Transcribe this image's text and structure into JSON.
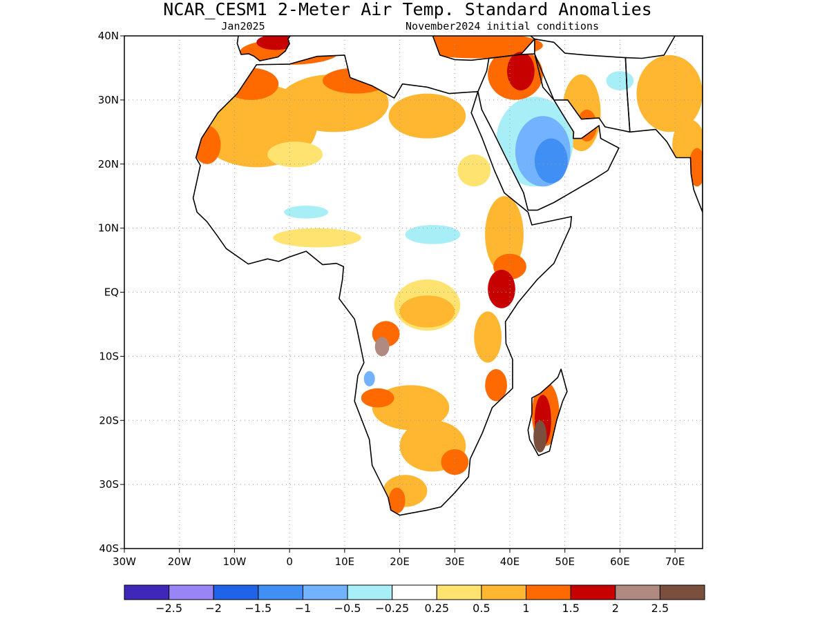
{
  "header": {
    "title": "NCAR_CESM1 2-Meter Air Temp. Standard Anomalies",
    "valid_month": "Jan2025",
    "init_label": "November2024 initial conditions"
  },
  "map": {
    "lon_range": [
      -30,
      75
    ],
    "lat_range": [
      -40,
      40
    ],
    "lon_ticks": [
      {
        "value": -30,
        "label": "30W"
      },
      {
        "value": -20,
        "label": "20W"
      },
      {
        "value": -10,
        "label": "10W"
      },
      {
        "value": 0,
        "label": "0"
      },
      {
        "value": 10,
        "label": "10E"
      },
      {
        "value": 20,
        "label": "20E"
      },
      {
        "value": 30,
        "label": "30E"
      },
      {
        "value": 40,
        "label": "40E"
      },
      {
        "value": 50,
        "label": "50E"
      },
      {
        "value": 60,
        "label": "60E"
      },
      {
        "value": 70,
        "label": "70E"
      }
    ],
    "lat_ticks": [
      {
        "value": 40,
        "label": "40N"
      },
      {
        "value": 30,
        "label": "30N"
      },
      {
        "value": 20,
        "label": "20N"
      },
      {
        "value": 10,
        "label": "10N"
      },
      {
        "value": 0,
        "label": "EQ"
      },
      {
        "value": -10,
        "label": "10S"
      },
      {
        "value": -20,
        "label": "20S"
      },
      {
        "value": -30,
        "label": "30S"
      },
      {
        "value": -40,
        "label": "40S"
      }
    ],
    "gridlines": true,
    "africa_outline": [
      [
        -17,
        21
      ],
      [
        -16,
        24
      ],
      [
        -13,
        28
      ],
      [
        -9.5,
        31
      ],
      [
        -6,
        35.5
      ],
      [
        0,
        35.6
      ],
      [
        5,
        36.8
      ],
      [
        10,
        37
      ],
      [
        11,
        33.5
      ],
      [
        15,
        32.2
      ],
      [
        19,
        30.3
      ],
      [
        20.5,
        32.5
      ],
      [
        25,
        32
      ],
      [
        29,
        31
      ],
      [
        32.3,
        31.2
      ],
      [
        34.2,
        31.3
      ],
      [
        33,
        28
      ],
      [
        35,
        24
      ],
      [
        37.2,
        19
      ],
      [
        39,
        15.5
      ],
      [
        43.3,
        12.5
      ],
      [
        44,
        10.5
      ],
      [
        51.2,
        11.8
      ],
      [
        51,
        10.2
      ],
      [
        48,
        4.5
      ],
      [
        45,
        2
      ],
      [
        41.5,
        -1.6
      ],
      [
        39.2,
        -4.6
      ],
      [
        39.3,
        -8
      ],
      [
        40.5,
        -10.5
      ],
      [
        40.5,
        -15
      ],
      [
        36.8,
        -18
      ],
      [
        35,
        -22
      ],
      [
        32.8,
        -26
      ],
      [
        32.5,
        -28.8
      ],
      [
        30,
        -31.3
      ],
      [
        27.5,
        -33.5
      ],
      [
        25,
        -34
      ],
      [
        20,
        -34.8
      ],
      [
        18.4,
        -34
      ],
      [
        17.9,
        -32
      ],
      [
        15,
        -27
      ],
      [
        14.5,
        -23
      ],
      [
        11.8,
        -17
      ],
      [
        12.4,
        -13
      ],
      [
        13.5,
        -11
      ],
      [
        12.3,
        -6
      ],
      [
        11.8,
        -4.2
      ],
      [
        9,
        -1
      ],
      [
        9.6,
        2
      ],
      [
        9.8,
        4
      ],
      [
        8.5,
        4.5
      ],
      [
        6,
        4.3
      ],
      [
        3,
        6.4
      ],
      [
        0,
        5.5
      ],
      [
        -2,
        4.8
      ],
      [
        -4,
        5.2
      ],
      [
        -7.5,
        4.4
      ],
      [
        -11.5,
        6.8
      ],
      [
        -13.2,
        8.9
      ],
      [
        -15,
        11
      ],
      [
        -16.8,
        12.5
      ],
      [
        -17.5,
        14.7
      ],
      [
        -16.2,
        19.8
      ],
      [
        -17,
        21
      ]
    ],
    "arabia_outline": [
      [
        34.2,
        31.3
      ],
      [
        35.8,
        34.5
      ],
      [
        36.2,
        36.5
      ],
      [
        42,
        37.1
      ],
      [
        44.5,
        37.2
      ],
      [
        48,
        30
      ],
      [
        50.5,
        26.5
      ],
      [
        51.6,
        25
      ],
      [
        51.5,
        24
      ],
      [
        53,
        24
      ],
      [
        56.2,
        26
      ],
      [
        56.5,
        24
      ],
      [
        59.8,
        22.5
      ],
      [
        57.8,
        19
      ],
      [
        55,
        17.5
      ],
      [
        52,
        16
      ],
      [
        48,
        14
      ],
      [
        45,
        12.8
      ],
      [
        43.3,
        12.8
      ],
      [
        42.5,
        15.5
      ],
      [
        39,
        21.5
      ],
      [
        37,
        25
      ],
      [
        34.9,
        28.5
      ],
      [
        34.2,
        31.3
      ]
    ],
    "madagascar_outline": [
      [
        49.3,
        -12
      ],
      [
        50.4,
        -15.5
      ],
      [
        49.6,
        -17
      ],
      [
        48.5,
        -20
      ],
      [
        47.2,
        -24.8
      ],
      [
        45.2,
        -25.5
      ],
      [
        43.6,
        -23
      ],
      [
        43.3,
        -21.5
      ],
      [
        44,
        -19
      ],
      [
        44,
        -16.5
      ],
      [
        45.5,
        -15.8
      ],
      [
        47.2,
        -14.5
      ],
      [
        48.7,
        -13.3
      ],
      [
        49.3,
        -12
      ]
    ],
    "europe_outline": [
      [
        -9.5,
        38.8
      ],
      [
        -9.3,
        40
      ],
      [
        -8.8,
        42
      ],
      [
        -6,
        43.5
      ],
      [
        -1.5,
        43.5
      ],
      [
        3.2,
        42.2
      ],
      [
        3.1,
        41.5
      ],
      [
        0.8,
        40.8
      ],
      [
        -0.3,
        39.5
      ],
      [
        0,
        38.8
      ],
      [
        -0.8,
        37.6
      ],
      [
        -2.1,
        36.7
      ],
      [
        -5.4,
        36.1
      ],
      [
        -6.4,
        36.8
      ],
      [
        -7.4,
        37.2
      ],
      [
        -8.8,
        37.1
      ],
      [
        -9.5,
        38.8
      ]
    ],
    "turkey_outline": [
      [
        26,
        40
      ],
      [
        30,
        41.1
      ],
      [
        35,
        42
      ],
      [
        41.5,
        41.5
      ],
      [
        44.5,
        39.5
      ],
      [
        42,
        37.1
      ],
      [
        36.2,
        36.5
      ],
      [
        33,
        36.2
      ],
      [
        30,
        36.3
      ],
      [
        27.3,
        37
      ],
      [
        26,
        40
      ]
    ],
    "iran_outline": [
      [
        44.5,
        39.5
      ],
      [
        48,
        39
      ],
      [
        50,
        37.3
      ],
      [
        54,
        37
      ],
      [
        61,
        36.6
      ],
      [
        61.3,
        31.2
      ],
      [
        61.8,
        25
      ],
      [
        57.3,
        25.8
      ],
      [
        56.2,
        27.2
      ],
      [
        53,
        27
      ],
      [
        50.5,
        30
      ],
      [
        48,
        30
      ],
      [
        46,
        32
      ],
      [
        44.5,
        37.2
      ],
      [
        44.5,
        39.5
      ]
    ],
    "india_outline": [
      [
        61.8,
        25
      ],
      [
        66.5,
        25.4
      ],
      [
        68.5,
        23.5
      ],
      [
        70.2,
        21
      ],
      [
        72.8,
        21
      ],
      [
        72.9,
        18.5
      ],
      [
        73.4,
        16
      ],
      [
        74.3,
        14
      ],
      [
        75,
        12.5
      ],
      [
        75,
        40
      ],
      [
        70,
        40
      ],
      [
        68,
        37
      ],
      [
        64,
        36.5
      ],
      [
        61,
        36.6
      ],
      [
        61.3,
        31.2
      ],
      [
        61.8,
        25
      ]
    ],
    "anomaly_patches": [
      {
        "category": "0.5",
        "color": "#FFB732",
        "lon": -6,
        "lat": 26,
        "rx": 11,
        "ry": 6.5
      },
      {
        "category": "0.5",
        "color": "#FFB732",
        "lon": 8,
        "lat": 29.5,
        "rx": 10,
        "ry": 4.5
      },
      {
        "category": "0.5",
        "color": "#FFB732",
        "lon": 25,
        "lat": 27.5,
        "rx": 7,
        "ry": 3.5
      },
      {
        "category": "1",
        "color": "#FF6A00",
        "lon": -7,
        "lat": 32.5,
        "rx": 5,
        "ry": 2.5
      },
      {
        "category": "1",
        "color": "#FF6A00",
        "lon": 12,
        "lat": 33,
        "rx": 6,
        "ry": 2
      },
      {
        "category": "0.25",
        "color": "#FFE370",
        "lon": 1,
        "lat": 21.5,
        "rx": 5,
        "ry": 2
      },
      {
        "category": "1",
        "color": "#FF6A00",
        "lon": -15,
        "lat": 23,
        "rx": 2.5,
        "ry": 3
      },
      {
        "category": "1",
        "color": "#FF6A00",
        "lon": 0,
        "lat": 37.5,
        "rx": 9,
        "ry": 2
      },
      {
        "category": "1.5",
        "color": "#C70000",
        "lon": -2.5,
        "lat": 39,
        "rx": 3.5,
        "ry": 1.2
      },
      {
        "category": "1",
        "color": "#FF6A00",
        "lon": 34,
        "lat": 38.5,
        "rx": 12,
        "ry": 2
      },
      {
        "category": "1",
        "color": "#FF6A00",
        "lon": 41,
        "lat": 34,
        "rx": 5,
        "ry": 4
      },
      {
        "category": "1.5",
        "color": "#C70000",
        "lon": 42,
        "lat": 34.5,
        "rx": 2.5,
        "ry": 3
      },
      {
        "category": "0.5",
        "color": "#FFB732",
        "lon": 53,
        "lat": 28,
        "rx": 3.5,
        "ry": 6
      },
      {
        "category": "1",
        "color": "#FF6A00",
        "lon": 54,
        "lat": 26,
        "rx": 1.8,
        "ry": 2.5
      },
      {
        "category": "0.5",
        "color": "#FFB732",
        "lon": 69,
        "lat": 31,
        "rx": 6,
        "ry": 6
      },
      {
        "category": "0.5",
        "color": "#FFB732",
        "lon": 72.5,
        "lat": 23,
        "rx": 3,
        "ry": 4
      },
      {
        "category": "1",
        "color": "#FF6A00",
        "lon": 74,
        "lat": 19.5,
        "rx": 1.5,
        "ry": 3
      },
      {
        "category": "0.25",
        "color": "#FFE370",
        "lon": 33.5,
        "lat": 19,
        "rx": 3,
        "ry": 2.5
      },
      {
        "category": "0.25",
        "color": "#FFE370",
        "lon": 5,
        "lat": 8.5,
        "rx": 8,
        "ry": 1.5
      },
      {
        "category": "-0.5",
        "color": "#A8EEF7",
        "lon": 3,
        "lat": 12.5,
        "rx": 4,
        "ry": 1
      },
      {
        "category": "-0.5",
        "color": "#A8EEF7",
        "lon": 26,
        "lat": 9,
        "rx": 5,
        "ry": 1.5
      },
      {
        "category": "-0.5",
        "color": "#A8EEF7",
        "lon": 60,
        "lat": 33,
        "rx": 2.5,
        "ry": 1.5
      },
      {
        "category": "-0.25",
        "color": "#A8EEF7",
        "lon": 44.5,
        "lat": 23.5,
        "rx": 7,
        "ry": 7
      },
      {
        "category": "-1",
        "color": "#73B2FF",
        "lon": 46,
        "lat": 22,
        "rx": 5,
        "ry": 5.5
      },
      {
        "category": "-1.5",
        "color": "#3F8FF5",
        "lon": 47.5,
        "lat": 20.5,
        "rx": 3,
        "ry": 3.5
      },
      {
        "category": "0.5",
        "color": "#FFB732",
        "lon": 39,
        "lat": 9,
        "rx": 3.5,
        "ry": 6
      },
      {
        "category": "1",
        "color": "#FF6A00",
        "lon": 40,
        "lat": 4,
        "rx": 3,
        "ry": 2
      },
      {
        "category": "1.5",
        "color": "#C70000",
        "lon": 38.5,
        "lat": 0.5,
        "rx": 2.5,
        "ry": 3
      },
      {
        "category": "0.25",
        "color": "#FFE370",
        "lon": 25,
        "lat": -2,
        "rx": 6,
        "ry": 4
      },
      {
        "category": "0.5",
        "color": "#FFB732",
        "lon": 25,
        "lat": -3,
        "rx": 5,
        "ry": 2.5
      },
      {
        "category": "1",
        "color": "#FF6A00",
        "lon": 17.5,
        "lat": -6.5,
        "rx": 2.5,
        "ry": 2
      },
      {
        "category": "2",
        "color": "#B08A80",
        "lon": 16.8,
        "lat": -8.5,
        "rx": 1.3,
        "ry": 1.5
      },
      {
        "category": "0.5",
        "color": "#FFB732",
        "lon": 36,
        "lat": -7,
        "rx": 2.5,
        "ry": 4
      },
      {
        "category": "1",
        "color": "#FF6A00",
        "lon": 37.5,
        "lat": -14.5,
        "rx": 2,
        "ry": 2.5
      },
      {
        "category": "-1",
        "color": "#73B2FF",
        "lon": 14.5,
        "lat": -13.5,
        "rx": 1,
        "ry": 1.2
      },
      {
        "category": "0.5",
        "color": "#FFB732",
        "lon": 22,
        "lat": -18,
        "rx": 7,
        "ry": 3.5
      },
      {
        "category": "0.5",
        "color": "#FFB732",
        "lon": 26,
        "lat": -24,
        "rx": 6,
        "ry": 4
      },
      {
        "category": "1",
        "color": "#FF6A00",
        "lon": 16,
        "lat": -16.5,
        "rx": 3,
        "ry": 1.5
      },
      {
        "category": "1",
        "color": "#FF6A00",
        "lon": 30,
        "lat": -26.5,
        "rx": 2.5,
        "ry": 2
      },
      {
        "category": "0.5",
        "color": "#FFB732",
        "lon": 21,
        "lat": -31,
        "rx": 4,
        "ry": 2.5
      },
      {
        "category": "1",
        "color": "#FF6A00",
        "lon": 19.5,
        "lat": -32.5,
        "rx": 1.5,
        "ry": 2
      },
      {
        "category": "1",
        "color": "#FF6A00",
        "lon": 46.5,
        "lat": -19,
        "rx": 2.5,
        "ry": 5
      },
      {
        "category": "1.5",
        "color": "#C70000",
        "lon": 46,
        "lat": -20,
        "rx": 1.5,
        "ry": 4
      },
      {
        "category": "2.5",
        "color": "#7A4F3E",
        "lon": 45.5,
        "lat": -22.5,
        "rx": 1.2,
        "ry": 2.5
      }
    ]
  },
  "colorbar": {
    "colors": [
      "#3F28B8",
      "#9A85F7",
      "#1F64E8",
      "#3F8FF5",
      "#73B2FF",
      "#A8EEF7",
      "#FFFFFF",
      "#FFE370",
      "#FFB732",
      "#FF6A00",
      "#C70000",
      "#B08A80",
      "#7A4F3E"
    ],
    "labels": [
      "-2.5",
      "-2",
      "-1.5",
      "-1",
      "-0.5",
      "-0.25",
      "0.25",
      "0.5",
      "1",
      "1.5",
      "2",
      "2.5"
    ]
  }
}
